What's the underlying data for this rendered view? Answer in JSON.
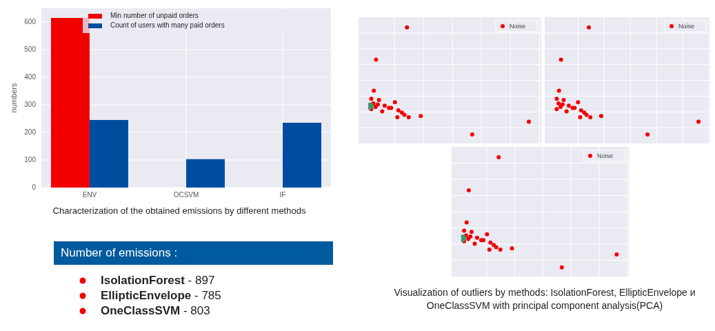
{
  "chart_data": [
    {
      "type": "bar",
      "categories": [
        "ENV",
        "OCSVM",
        "IF"
      ],
      "ylabel": "numbers",
      "ylim": [
        0,
        650
      ],
      "yticks": [
        0,
        100,
        200,
        300,
        400,
        500,
        600
      ],
      "grid": true,
      "legend": "top",
      "series": [
        {
          "name": "Min number of unpaid orders",
          "color": "#f20000",
          "values": [
            615,
            null,
            null
          ]
        },
        {
          "name": "Count of users with many paid orders",
          "color": "#004da0",
          "values": [
            245,
            103,
            235
          ]
        }
      ],
      "annotations": [
        "Characterization of the obtained emissions by different methods"
      ]
    },
    {
      "type": "other",
      "annotations": [
        "Noise"
      ]
    },
    {
      "type": "other",
      "annotations": [
        "Noise"
      ]
    },
    {
      "type": "other",
      "annotations": [
        "Noise",
        "Visualization of outliers by methods: IsolationForest, EllipticEnvelope и OneClassSVM with principal component analysis(PCA)"
      ]
    },
    {
      "type": "other",
      "title": "Number of emissions :",
      "annotations": [
        "IsolationForest - 897",
        "EllipticEnvelope - 785",
        "OneClassSVM - 803"
      ]
    }
  ]
}
